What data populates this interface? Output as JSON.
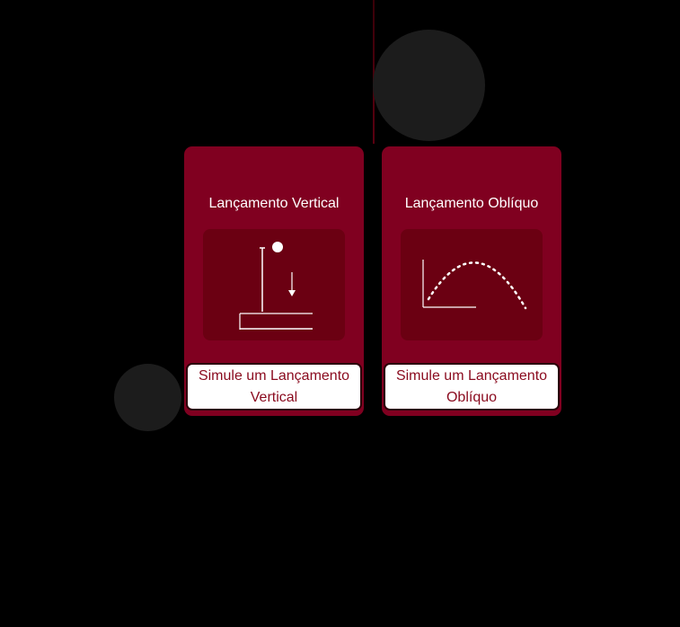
{
  "cards": [
    {
      "title": "Lançamento Vertical",
      "illustration": "vertical-launch-icon",
      "button_label": "Simule um Lançamento Vertical"
    },
    {
      "title": "Lançamento Oblíquo",
      "illustration": "oblique-launch-icon",
      "button_label": "Simule um Lançamento Oblíquo"
    }
  ],
  "colors": {
    "background": "#000000",
    "card": "#800020",
    "card_art": "#6b0012",
    "button_bg": "#ffffff",
    "button_text": "#8a0a1e",
    "decor_circle": "#1c1c1c"
  }
}
